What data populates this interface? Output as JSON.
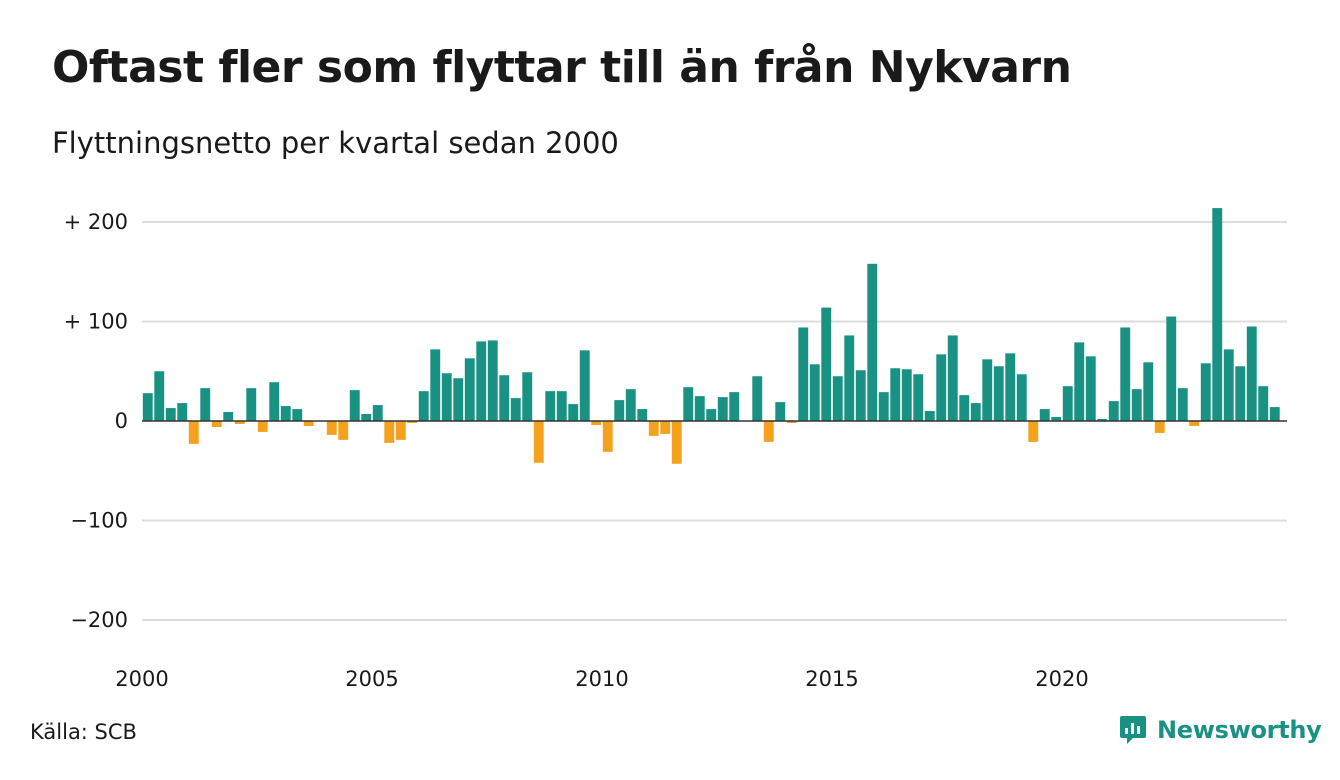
{
  "header": {
    "title": "Oftast fler som flyttar till än från Nykvarn",
    "subtitle": "Flyttningsnetto per kvartal sedan 2000"
  },
  "footer": {
    "source": "Källa: SCB",
    "brand": "Newsworthy"
  },
  "colors": {
    "positive": "#1a9283",
    "negative": "#f4a21d",
    "grid": "#dddddd",
    "zero_line": "#333333",
    "brand_text": "#1a9283"
  },
  "chart_data": {
    "type": "bar",
    "title": "Oftast fler som flyttar till än från Nykvarn",
    "subtitle": "Flyttningsnetto per kvartal sedan 2000",
    "xlabel": "",
    "ylabel": "",
    "ylim": [
      -200,
      200
    ],
    "grid": true,
    "yticks": [
      200,
      100,
      0,
      -100,
      -200
    ],
    "ytick_labels": [
      "+ 200",
      "+ 100",
      "0",
      "−100",
      "−200"
    ],
    "xtick_labels": [
      "2000",
      "2005",
      "2010",
      "2015",
      "2020"
    ],
    "start_year": 2000,
    "period": "quarter",
    "values": [
      28,
      50,
      13,
      18,
      -23,
      33,
      -6,
      9,
      -3,
      33,
      -11,
      39,
      15,
      12,
      -5,
      0,
      -14,
      -19,
      31,
      7,
      16,
      -22,
      -19,
      -2,
      30,
      72,
      48,
      43,
      63,
      80,
      81,
      46,
      23,
      49,
      -42,
      30,
      30,
      17,
      71,
      -4,
      -31,
      21,
      32,
      12,
      -15,
      -13,
      -43,
      34,
      25,
      12,
      24,
      29,
      0,
      45,
      -21,
      19,
      -2,
      94,
      57,
      114,
      45,
      86,
      51,
      158,
      29,
      53,
      52,
      47,
      10,
      67,
      86,
      26,
      18,
      62,
      55,
      68,
      47,
      -21,
      12,
      4,
      35,
      79,
      65,
      2,
      20,
      94,
      32,
      59,
      -12,
      105,
      33,
      -5,
      58,
      214,
      72,
      55,
      95,
      35,
      14
    ]
  }
}
